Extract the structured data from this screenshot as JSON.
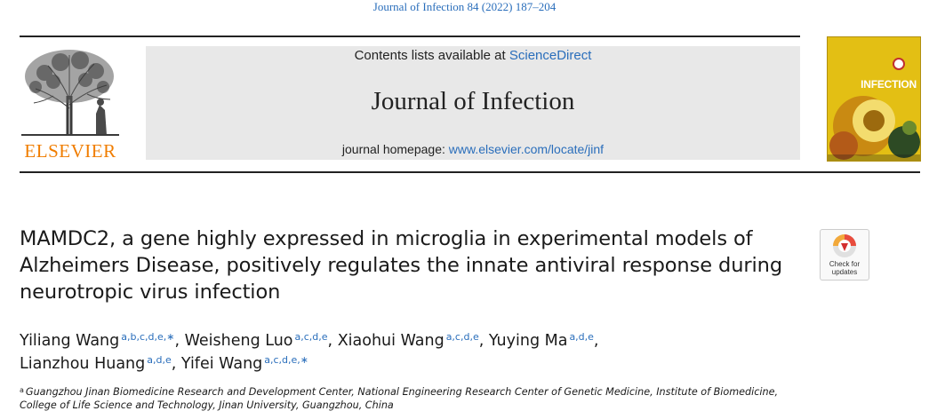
{
  "citation": "Journal of Infection 84 (2022) 187–204",
  "publisher": {
    "name": "ELSEVIER",
    "brand_color": "#f07d00"
  },
  "header": {
    "contents_prefix": "Contents lists available at",
    "contents_link": "ScienceDirect",
    "journal_name": "Journal of Infection",
    "homepage_prefix": "journal homepage:",
    "homepage_link": "www.elsevier.com/locate/jinf"
  },
  "cover": {
    "title": "INFECTION",
    "accent_color": "#e3bf14"
  },
  "check_updates": {
    "line1": "Check for",
    "line2": "updates"
  },
  "article": {
    "title": "MAMDC2, a gene highly expressed in microglia in experimental models of Alzheimers Disease, positively regulates the innate antiviral response during neurotropic virus infection"
  },
  "authors": [
    {
      "name": "Yiliang Wang",
      "sup": "a,b,c,d,e,∗",
      "sep": ", "
    },
    {
      "name": "Weisheng Luo",
      "sup": "a,c,d,e",
      "sep": ", "
    },
    {
      "name": "Xiaohui Wang",
      "sup": "a,c,d,e",
      "sep": ", "
    },
    {
      "name": "Yuying Ma",
      "sup": "a,d,e",
      "sep": ","
    },
    {
      "name": "Lianzhou Huang",
      "sup": "a,d,e",
      "sep": ", "
    },
    {
      "name": "Yifei Wang",
      "sup": "a,c,d,e,∗",
      "sep": ""
    }
  ],
  "affiliations": [
    {
      "mark": "a",
      "text": "Guangzhou Jinan Biomedicine Research and Development Center, National Engineering Research Center of Genetic Medicine, Institute of Biomedicine,"
    },
    {
      "mark": "",
      "text": "College of Life Science and Technology, Jinan University, Guangzhou, China"
    }
  ],
  "colors": {
    "link": "#2a6ebb",
    "header_bg": "#e8e8e8"
  }
}
